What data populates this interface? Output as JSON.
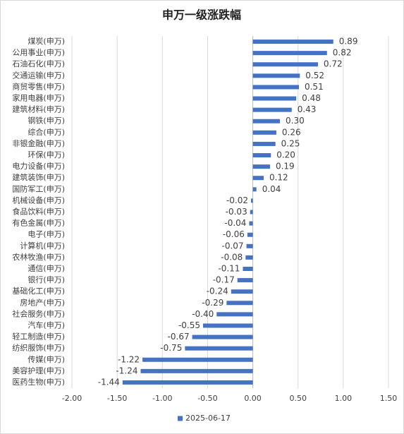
{
  "chart_data": {
    "type": "hbar",
    "title": "申万一级涨跌幅",
    "categories": [
      "煤炭(申万)",
      "公用事业(申万)",
      "石油石化(申万)",
      "交通运输(申万)",
      "商贸零售(申万)",
      "家用电器(申万)",
      "建筑材料(申万)",
      "钢铁(申万)",
      "综合(申万)",
      "非银金融(申万)",
      "环保(申万)",
      "电力设备(申万)",
      "建筑装饰(申万)",
      "国防军工(申万)",
      "机械设备(申万)",
      "食品饮料(申万)",
      "有色金属(申万)",
      "电子(申万)",
      "计算机(申万)",
      "农林牧渔(申万)",
      "通信(申万)",
      "银行(申万)",
      "基础化工(申万)",
      "房地产(申万)",
      "社会服务(申万)",
      "汽车(申万)",
      "轻工制造(申万)",
      "纺织服饰(申万)",
      "传媒(申万)",
      "美容护理(申万)",
      "医药生物(申万)"
    ],
    "series": [
      {
        "name": "2025-06-17",
        "color": "#4472c4",
        "values": [
          0.89,
          0.82,
          0.72,
          0.52,
          0.51,
          0.48,
          0.43,
          0.3,
          0.26,
          0.25,
          0.2,
          0.19,
          0.12,
          0.04,
          -0.02,
          -0.03,
          -0.04,
          -0.06,
          -0.07,
          -0.08,
          -0.11,
          -0.17,
          -0.24,
          -0.29,
          -0.4,
          -0.55,
          -0.67,
          -0.75,
          -1.22,
          -1.24,
          -1.44
        ],
        "value_labels": [
          "0.89",
          "0.82",
          "0.72",
          "0.52",
          "0.51",
          "0.48",
          "0.43",
          "0.30",
          "0.26",
          "0.25",
          "0.20",
          "0.19",
          "0.12",
          "0.04",
          "-0.02",
          "-0.03",
          "-0.04",
          "-0.06",
          "-0.07",
          "-0.08",
          "-0.11",
          "-0.17",
          "-0.24",
          "-0.29",
          "-0.40",
          "-0.55",
          "-0.67",
          "-0.75",
          "-1.22",
          "-1.24",
          "-1.44"
        ]
      }
    ],
    "xlim": [
      -2,
      1.5
    ],
    "xticks": [
      {
        "value": -2,
        "label": "-2.00"
      },
      {
        "value": -1.5,
        "label": "-1.50"
      },
      {
        "value": -1,
        "label": "-1.00"
      },
      {
        "value": -0.5,
        "label": "-0.50"
      },
      {
        "value": 0,
        "label": "0.00"
      },
      {
        "value": 0.5,
        "label": "0.50"
      },
      {
        "value": 1,
        "label": "1.00"
      },
      {
        "value": 1.5,
        "label": "1.50"
      }
    ],
    "grid": true,
    "legend": "bottom"
  }
}
